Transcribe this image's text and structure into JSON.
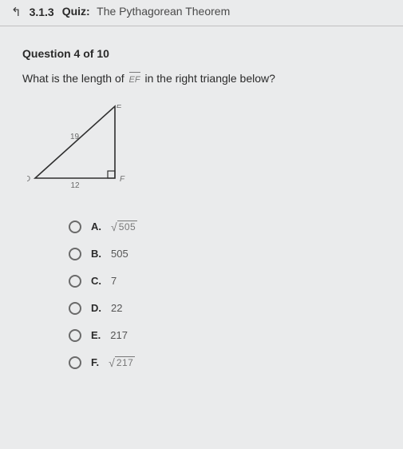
{
  "header": {
    "number": "3.1.3",
    "label": "Quiz:",
    "title": "The Pythagorean Theorem"
  },
  "question": {
    "counter": "Question 4 of 10",
    "text_before": "What is the length of ",
    "segment_label": "EF",
    "text_after": " in the right triangle below?"
  },
  "figure": {
    "type": "right-triangle",
    "vertices": {
      "top": "E",
      "left": "D",
      "right": "F"
    },
    "side_labels": {
      "hypotenuse": "19",
      "base": "12"
    },
    "points": {
      "D": [
        10,
        92
      ],
      "E": [
        110,
        2
      ],
      "F": [
        110,
        92
      ]
    },
    "stroke_color": "#2f2f2f",
    "stroke_width": 1.6,
    "label_color": "#6b6b6b",
    "label_fontsize": 10
  },
  "answers": [
    {
      "letter": "A.",
      "type": "sqrt",
      "value": "505"
    },
    {
      "letter": "B.",
      "type": "plain",
      "value": "505"
    },
    {
      "letter": "C.",
      "type": "plain",
      "value": "7"
    },
    {
      "letter": "D.",
      "type": "plain",
      "value": "22"
    },
    {
      "letter": "E.",
      "type": "plain",
      "value": "217"
    },
    {
      "letter": "F.",
      "type": "sqrt",
      "value": "217"
    }
  ]
}
